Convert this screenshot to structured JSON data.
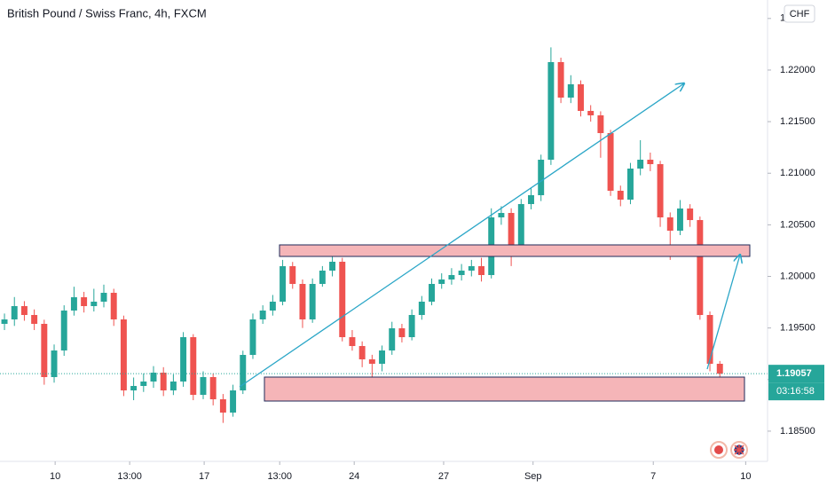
{
  "chart_data": {
    "type": "candlestick",
    "title": "British Pound / Swiss Franc, 4h, FXCM",
    "currency": "CHF",
    "last_price": 1.19057,
    "countdown": "03:16:58",
    "up_color": "#26a69a",
    "down_color": "#ef5350",
    "x": [
      0,
      1,
      2,
      3,
      4,
      5,
      6,
      7,
      8,
      9,
      10,
      11,
      12,
      13,
      14,
      15,
      16,
      17,
      18,
      19,
      20,
      21,
      22,
      23,
      24,
      25,
      26,
      27,
      28,
      29,
      30,
      31,
      32,
      33,
      34,
      35,
      36,
      37,
      38,
      39,
      40,
      41,
      42,
      43,
      44,
      45,
      46,
      47,
      48,
      49,
      50,
      51,
      52,
      53,
      54,
      55,
      56,
      57,
      58,
      59,
      60,
      61,
      62,
      63,
      64,
      65,
      66,
      67,
      68,
      69,
      70,
      71,
      72
    ],
    "open": [
      1.1954,
      1.19583,
      1.19712,
      1.19626,
      1.1954,
      1.19024,
      1.19282,
      1.19669,
      1.19798,
      1.19712,
      1.19755,
      1.19841,
      1.19583,
      1.18895,
      1.18938,
      1.18981,
      1.19067,
      1.18895,
      1.18981,
      1.19411,
      1.18852,
      1.19024,
      1.18809,
      1.1868,
      1.18895,
      1.19239,
      1.19583,
      1.19669,
      1.19755,
      1.20099,
      1.19927,
      1.19583,
      1.19927,
      1.20056,
      1.20142,
      1.19411,
      1.19325,
      1.19196,
      1.19153,
      1.19282,
      1.19497,
      1.19411,
      1.19626,
      1.19755,
      1.19927,
      1.1997,
      1.20013,
      1.20056,
      1.20099,
      1.20013,
      1.20572,
      1.20615,
      1.20254,
      1.20701,
      1.20787,
      1.21131,
      1.22077,
      1.21733,
      1.21862,
      1.21604,
      1.21561,
      1.21389,
      1.2083,
      1.20744,
      1.21045,
      1.21131,
      1.21088,
      1.20572,
      1.20443,
      1.20658,
      1.20546,
      1.19626,
      1.19153
    ],
    "high": [
      1.1964,
      1.198,
      1.1976,
      1.1968,
      1.1958,
      1.1934,
      1.1972,
      1.199,
      1.1985,
      1.1988,
      1.1992,
      1.1988,
      1.1962,
      1.1902,
      1.1906,
      1.1913,
      1.1912,
      1.1905,
      1.1946,
      1.1944,
      1.1908,
      1.1906,
      1.1886,
      1.1895,
      1.1928,
      1.1964,
      1.1972,
      1.1982,
      1.2016,
      1.2014,
      1.1997,
      1.1998,
      1.201,
      1.203,
      1.2018,
      1.1948,
      1.1937,
      1.1924,
      1.1933,
      1.1956,
      1.1954,
      1.1968,
      1.1981,
      1.1998,
      1.2003,
      1.2008,
      1.2012,
      1.2016,
      1.2018,
      1.2066,
      1.2068,
      1.2066,
      1.2075,
      1.2086,
      1.2118,
      1.2222,
      1.2212,
      1.2195,
      1.219,
      1.2166,
      1.216,
      1.2142,
      1.2088,
      1.211,
      1.2132,
      1.212,
      1.2112,
      1.2062,
      1.2074,
      1.207,
      1.2058,
      1.1966,
      1.1918
    ],
    "low": [
      1.1948,
      1.1952,
      1.1957,
      1.1948,
      1.1895,
      1.1897,
      1.1923,
      1.1962,
      1.1965,
      1.1966,
      1.197,
      1.1952,
      1.1884,
      1.188,
      1.1888,
      1.1892,
      1.1884,
      1.1885,
      1.1893,
      1.188,
      1.1881,
      1.1875,
      1.1858,
      1.1864,
      1.1886,
      1.192,
      1.1954,
      1.1962,
      1.1972,
      1.1988,
      1.195,
      1.1955,
      1.199,
      1.2,
      1.1937,
      1.1928,
      1.1912,
      1.19,
      1.1908,
      1.1924,
      1.1936,
      1.1938,
      1.1958,
      1.1972,
      1.1988,
      1.1992,
      1.1996,
      1.2,
      1.1995,
      1.1998,
      1.205,
      1.201,
      1.202,
      1.2065,
      1.2073,
      1.2108,
      1.2168,
      1.2168,
      1.2155,
      1.215,
      1.2115,
      1.2078,
      1.2068,
      1.207,
      1.2098,
      1.2102,
      1.2048,
      1.2016,
      1.204,
      1.2048,
      1.1958,
      1.1908,
      1.1898
    ],
    "close": [
      1.19583,
      1.19712,
      1.19626,
      1.1954,
      1.19024,
      1.19282,
      1.19669,
      1.19798,
      1.19712,
      1.19755,
      1.19841,
      1.19583,
      1.18895,
      1.18938,
      1.18981,
      1.19067,
      1.18895,
      1.18981,
      1.19411,
      1.18852,
      1.19024,
      1.18809,
      1.1868,
      1.18895,
      1.19239,
      1.19583,
      1.19669,
      1.19755,
      1.20099,
      1.19927,
      1.19583,
      1.19927,
      1.20056,
      1.20142,
      1.19411,
      1.19325,
      1.19196,
      1.19153,
      1.19282,
      1.19497,
      1.19411,
      1.19626,
      1.19755,
      1.19927,
      1.1997,
      1.20013,
      1.20056,
      1.20099,
      1.20013,
      1.20572,
      1.20615,
      1.20254,
      1.20701,
      1.20787,
      1.21131,
      1.22077,
      1.21733,
      1.21862,
      1.21604,
      1.21561,
      1.21389,
      1.2083,
      1.20744,
      1.21045,
      1.21131,
      1.21088,
      1.20572,
      1.20443,
      1.20658,
      1.20546,
      1.19626,
      1.19153,
      1.19057
    ],
    "xlim": [
      -0.45,
      76.8
    ],
    "xticks": [
      {
        "value": 5.1,
        "label": "10"
      },
      {
        "value": 12.6,
        "label": "13:00"
      },
      {
        "value": 20.1,
        "label": "17"
      },
      {
        "value": 27.7,
        "label": "13:00"
      },
      {
        "value": 35.2,
        "label": "24"
      },
      {
        "value": 44.2,
        "label": "27"
      },
      {
        "value": 53.2,
        "label": "Sep"
      },
      {
        "value": 65.3,
        "label": "7"
      },
      {
        "value": 74.6,
        "label": "10"
      }
    ],
    "ylim": [
      1.18207,
      1.22679
    ],
    "yticks": [
      {
        "value": 1.185,
        "label": "1.18500"
      },
      {
        "value": 1.19,
        "label": "1.19000"
      },
      {
        "value": 1.195,
        "label": "1.19500"
      },
      {
        "value": 1.2,
        "label": "1.20000"
      },
      {
        "value": 1.205,
        "label": "1.20500"
      },
      {
        "value": 1.21,
        "label": "1.21000"
      },
      {
        "value": 1.215,
        "label": "1.21500"
      },
      {
        "value": 1.22,
        "label": "1.22000"
      },
      {
        "value": 1.225,
        "label": "1.22500"
      }
    ],
    "grid": false
  }
}
